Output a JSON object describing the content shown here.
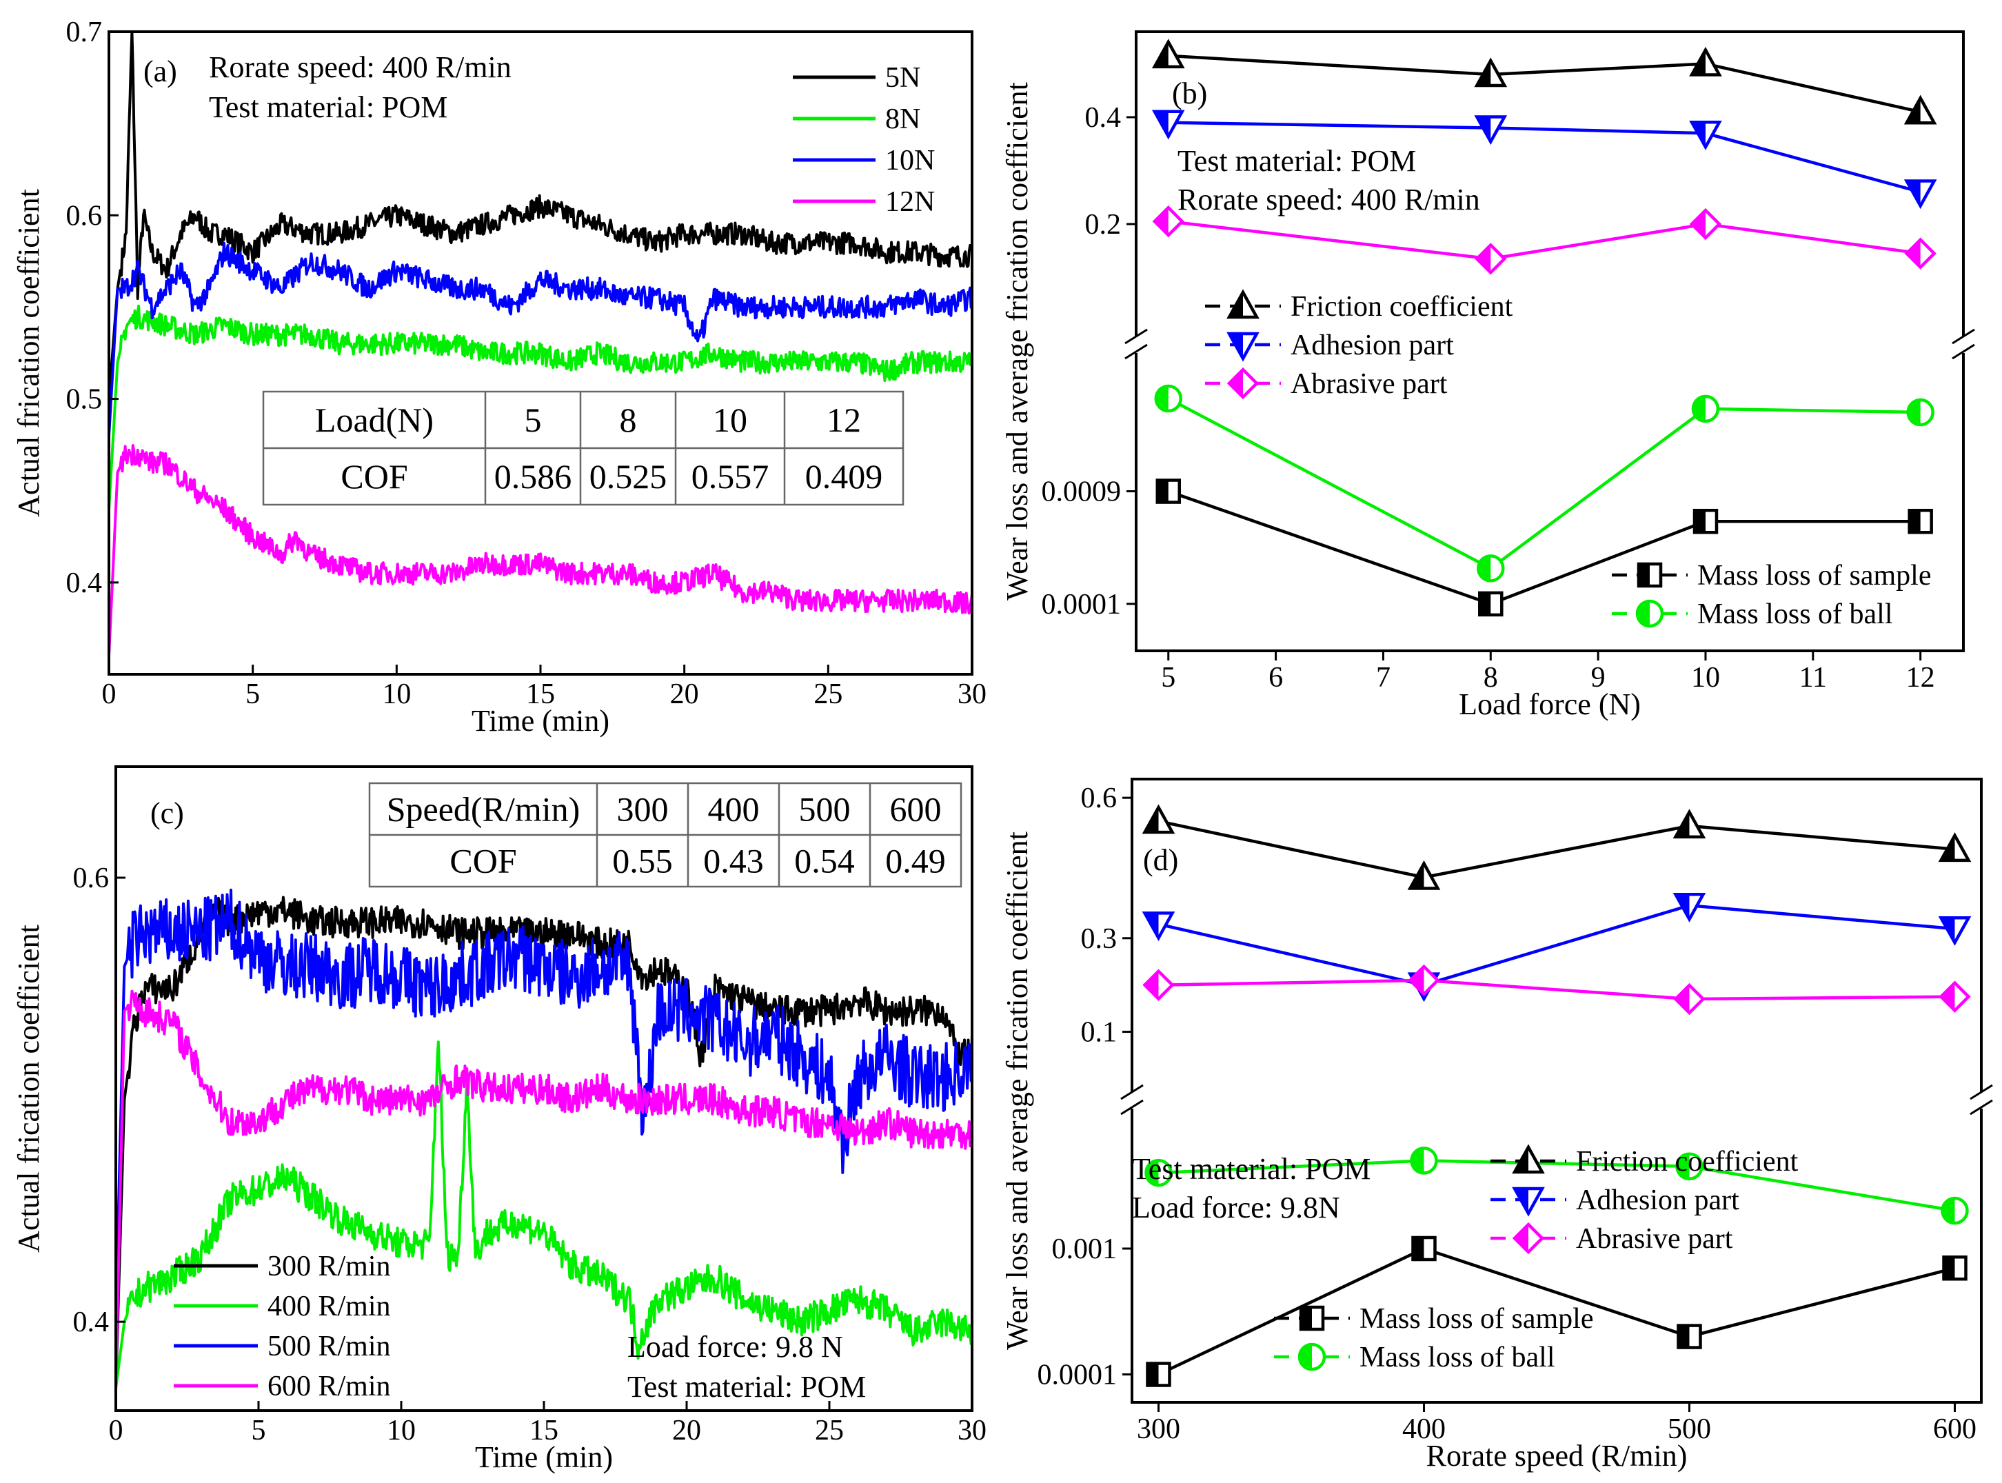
{
  "chart_data": [
    {
      "panel": "(a)",
      "type": "line",
      "xlabel": "Time (min)",
      "ylabel": "Actual frication coefficient",
      "xlim": [
        0,
        30
      ],
      "ylim": [
        0.35,
        0.7
      ],
      "xticks": [
        0,
        5,
        10,
        15,
        20,
        25,
        30
      ],
      "yticks": [
        0.4,
        0.5,
        0.6,
        0.7
      ],
      "annotations": [
        "Rorate speed: 400 R/min",
        "Test material: POM"
      ],
      "legend_position": "top-right",
      "series": [
        {
          "name": "5N",
          "color": "#000000",
          "x": [
            0,
            0.3,
            0.6,
            0.8,
            1.0,
            1.2,
            1.5,
            2,
            2.5,
            3,
            3.5,
            4,
            5,
            6,
            7,
            8,
            9,
            10,
            11,
            12,
            13,
            14,
            15,
            16,
            17,
            18,
            19,
            20,
            21,
            22,
            23,
            24,
            25,
            26,
            27,
            28,
            29,
            30
          ],
          "y": [
            0.5,
            0.56,
            0.59,
            0.7,
            0.56,
            0.6,
            0.58,
            0.57,
            0.59,
            0.6,
            0.59,
            0.59,
            0.58,
            0.595,
            0.59,
            0.59,
            0.595,
            0.6,
            0.595,
            0.59,
            0.595,
            0.6,
            0.605,
            0.6,
            0.595,
            0.59,
            0.585,
            0.59,
            0.59,
            0.59,
            0.585,
            0.585,
            0.585,
            0.585,
            0.58,
            0.58,
            0.578,
            0.578
          ]
        },
        {
          "name": "8N",
          "color": "#00ee00",
          "x": [
            0,
            0.3,
            0.6,
            1,
            2,
            3,
            4,
            5,
            6,
            7,
            8,
            9,
            10,
            11,
            12,
            13,
            14,
            15,
            16,
            17,
            18,
            19,
            20,
            21,
            22,
            23,
            24,
            25,
            26,
            27,
            28,
            29,
            30
          ],
          "y": [
            0.44,
            0.52,
            0.54,
            0.545,
            0.54,
            0.535,
            0.54,
            0.535,
            0.535,
            0.535,
            0.53,
            0.53,
            0.53,
            0.53,
            0.53,
            0.525,
            0.525,
            0.525,
            0.52,
            0.525,
            0.52,
            0.52,
            0.52,
            0.525,
            0.52,
            0.52,
            0.52,
            0.52,
            0.52,
            0.515,
            0.52,
            0.52,
            0.52
          ]
        },
        {
          "name": "10N",
          "color": "#0000ff",
          "x": [
            0,
            0.3,
            0.6,
            1,
            1.5,
            2,
            2.5,
            3,
            3.5,
            4,
            5,
            6,
            7,
            8,
            9,
            10,
            11,
            12,
            13,
            14,
            15,
            16,
            17,
            18,
            19,
            20,
            20.5,
            21,
            22,
            23,
            24,
            25,
            26,
            27,
            28,
            29,
            30
          ],
          "y": [
            0.48,
            0.56,
            0.56,
            0.57,
            0.55,
            0.56,
            0.57,
            0.55,
            0.56,
            0.58,
            0.57,
            0.56,
            0.575,
            0.57,
            0.56,
            0.57,
            0.565,
            0.56,
            0.56,
            0.55,
            0.565,
            0.56,
            0.56,
            0.555,
            0.555,
            0.55,
            0.53,
            0.555,
            0.55,
            0.55,
            0.55,
            0.55,
            0.55,
            0.55,
            0.555,
            0.55,
            0.555
          ]
        },
        {
          "name": "12N",
          "color": "#ff00ff",
          "x": [
            0,
            0.3,
            0.6,
            1,
            1.5,
            2,
            3,
            4,
            5,
            6,
            6.5,
            7,
            8,
            9,
            10,
            11,
            12,
            13,
            14,
            15,
            16,
            17,
            18,
            19,
            20,
            21,
            22,
            23,
            24,
            25,
            26,
            27,
            28,
            29,
            30
          ],
          "y": [
            0.36,
            0.46,
            0.47,
            0.47,
            0.465,
            0.465,
            0.45,
            0.44,
            0.425,
            0.415,
            0.425,
            0.415,
            0.41,
            0.405,
            0.405,
            0.405,
            0.405,
            0.41,
            0.41,
            0.41,
            0.405,
            0.405,
            0.405,
            0.4,
            0.4,
            0.405,
            0.395,
            0.395,
            0.39,
            0.39,
            0.39,
            0.39,
            0.39,
            0.39,
            0.388
          ]
        }
      ],
      "table": {
        "rows": [
          [
            "Load(N)",
            "5",
            "8",
            "10",
            "12"
          ],
          [
            "COF",
            "0.586",
            "0.525",
            "0.557",
            "0.409"
          ]
        ]
      }
    },
    {
      "panel": "(b)",
      "type": "line",
      "xlabel": "Load force (N)",
      "ylabel": "Wear  loss and average frication coefficient",
      "x": [
        5,
        8,
        10,
        12
      ],
      "xlim": [
        4.7,
        12.4
      ],
      "xticks": [
        5,
        6,
        7,
        8,
        9,
        10,
        11,
        12
      ],
      "upper_yticks": [
        "0.2",
        "0.4"
      ],
      "lower_yticks": [
        "0.0001",
        "0.0009"
      ],
      "lower_scale": "log",
      "annotations": [
        "Test material: POM",
        "Rorate speed: 400 R/min"
      ],
      "series": [
        {
          "name": "Friction coefficient",
          "axis": "upper",
          "color": "#000000",
          "marker": "triangle-up",
          "values": [
            0.515,
            0.48,
            0.5,
            0.41
          ]
        },
        {
          "name": "Adhesion part",
          "axis": "upper",
          "color": "#0000ff",
          "marker": "triangle-down",
          "values": [
            0.39,
            0.38,
            0.37,
            0.26
          ]
        },
        {
          "name": "Abrasive part",
          "axis": "upper",
          "color": "#ff00ff",
          "marker": "diamond",
          "values": [
            0.205,
            0.135,
            0.2,
            0.145
          ]
        },
        {
          "name": "Mass loss of sample",
          "axis": "lower",
          "color": "#000000",
          "marker": "square-half",
          "values": [
            0.0009,
            0.0001,
            0.0005,
            0.0005
          ]
        },
        {
          "name": "Mass loss of ball",
          "axis": "lower",
          "color": "#00ee00",
          "marker": "circle-half",
          "values": [
            0.0055,
            0.0002,
            0.0045,
            0.0042
          ]
        }
      ]
    },
    {
      "panel": "(c)",
      "type": "line",
      "xlabel": "Time (min)",
      "ylabel": "Actual frication coefficient",
      "xlim": [
        0,
        30
      ],
      "ylim": [
        0.36,
        0.65
      ],
      "xticks": [
        0,
        5,
        10,
        15,
        20,
        25,
        30
      ],
      "yticks": [
        0.4,
        0.6
      ],
      "annotations": [
        "Load force: 9.8 N",
        "Test material: POM"
      ],
      "legend_position": "bottom-left",
      "series": [
        {
          "name": "300 R/min",
          "color": "#000000",
          "x": [
            0,
            0.3,
            0.6,
            1,
            2,
            3,
            3.5,
            4,
            5,
            6,
            7,
            8,
            9,
            10,
            11,
            12,
            13,
            14,
            15,
            16,
            17,
            18,
            18.5,
            19,
            20,
            20.5,
            21,
            22,
            23,
            24,
            25,
            26,
            27,
            28,
            29,
            29.5,
            30
          ],
          "y": [
            0.37,
            0.5,
            0.53,
            0.55,
            0.55,
            0.575,
            0.585,
            0.58,
            0.585,
            0.585,
            0.58,
            0.58,
            0.58,
            0.58,
            0.58,
            0.575,
            0.575,
            0.575,
            0.575,
            0.575,
            0.57,
            0.57,
            0.555,
            0.56,
            0.55,
            0.52,
            0.55,
            0.545,
            0.54,
            0.54,
            0.54,
            0.545,
            0.54,
            0.54,
            0.54,
            0.52,
            0.52
          ]
        },
        {
          "name": "400 R/min",
          "color": "#00ee00",
          "x": [
            0,
            0.3,
            0.6,
            1,
            2,
            3,
            4,
            5,
            6,
            7,
            8,
            9,
            10,
            11,
            11.3,
            11.6,
            12,
            12.3,
            12.6,
            13,
            14,
            15,
            16,
            17,
            18,
            18.3,
            19,
            20,
            21,
            22,
            23,
            24,
            25,
            26,
            27,
            28,
            29,
            30
          ],
          "y": [
            0.37,
            0.4,
            0.41,
            0.415,
            0.42,
            0.43,
            0.455,
            0.46,
            0.465,
            0.455,
            0.445,
            0.44,
            0.435,
            0.435,
            0.53,
            0.43,
            0.43,
            0.51,
            0.43,
            0.44,
            0.445,
            0.44,
            0.425,
            0.42,
            0.41,
            0.39,
            0.41,
            0.415,
            0.42,
            0.41,
            0.405,
            0.4,
            0.405,
            0.41,
            0.405,
            0.395,
            0.4,
            0.395
          ]
        },
        {
          "name": "500 R/min",
          "color": "#0000ff",
          "x": [
            0,
            0.3,
            0.6,
            1,
            2,
            3,
            4,
            5,
            6,
            7,
            8,
            9,
            10,
            11,
            12,
            13,
            14,
            15,
            16,
            17,
            18,
            18.5,
            19,
            20,
            21,
            22,
            23,
            24,
            25,
            25.5,
            26,
            27,
            28,
            29,
            30
          ],
          "y": [
            0.4,
            0.56,
            0.57,
            0.575,
            0.575,
            0.575,
            0.58,
            0.565,
            0.56,
            0.56,
            0.555,
            0.56,
            0.555,
            0.55,
            0.555,
            0.56,
            0.565,
            0.56,
            0.555,
            0.56,
            0.56,
            0.49,
            0.54,
            0.54,
            0.535,
            0.525,
            0.53,
            0.52,
            0.51,
            0.48,
            0.51,
            0.52,
            0.51,
            0.51,
            0.515
          ]
        },
        {
          "name": "600 R/min",
          "color": "#ff00ff",
          "x": [
            0,
            0.3,
            0.6,
            1,
            2,
            3,
            4,
            5,
            6,
            7,
            8,
            9,
            10,
            11,
            12,
            13,
            14,
            15,
            16,
            17,
            18,
            19,
            20,
            21,
            22,
            23,
            24,
            25,
            26,
            27,
            28,
            29,
            30
          ],
          "y": [
            0.37,
            0.54,
            0.545,
            0.54,
            0.535,
            0.51,
            0.49,
            0.49,
            0.5,
            0.505,
            0.505,
            0.5,
            0.5,
            0.5,
            0.51,
            0.505,
            0.505,
            0.505,
            0.5,
            0.505,
            0.5,
            0.5,
            0.5,
            0.5,
            0.495,
            0.495,
            0.49,
            0.49,
            0.485,
            0.49,
            0.485,
            0.485,
            0.485
          ]
        }
      ],
      "table": {
        "rows": [
          [
            "Speed(R/min)",
            "300",
            "400",
            "500",
            "600"
          ],
          [
            "COF",
            "0.55",
            "0.43",
            "0.54",
            "0.49"
          ]
        ]
      }
    },
    {
      "panel": "(d)",
      "type": "line",
      "xlabel": "Rorate speed (R/min)",
      "ylabel": "Wear  loss and average frication coefficient",
      "x": [
        300,
        400,
        500,
        600
      ],
      "xlim": [
        290,
        610
      ],
      "xticks": [
        300,
        400,
        500,
        600
      ],
      "upper_yticks": [
        "0.1",
        "0.3",
        "0.6"
      ],
      "lower_yticks": [
        "0.0001",
        "0.001"
      ],
      "lower_scale": "log",
      "annotations": [
        "Test material: POM",
        "Load force: 9.8N"
      ],
      "series": [
        {
          "name": "Friction coefficient",
          "axis": "upper",
          "color": "#000000",
          "marker": "triangle-up",
          "values": [
            0.55,
            0.43,
            0.54,
            0.49
          ]
        },
        {
          "name": "Adhesion part",
          "axis": "upper",
          "color": "#0000ff",
          "marker": "triangle-down",
          "values": [
            0.33,
            0.2,
            0.37,
            0.32
          ]
        },
        {
          "name": "Abrasive part",
          "axis": "upper",
          "color": "#ff00ff",
          "marker": "diamond",
          "values": [
            0.2,
            0.21,
            0.17,
            0.175
          ]
        },
        {
          "name": "Mass loss of sample",
          "axis": "lower",
          "color": "#000000",
          "marker": "square-half",
          "values": [
            0.0001,
            0.001,
            0.0002,
            0.0007
          ]
        },
        {
          "name": "Mass loss of ball",
          "axis": "lower",
          "color": "#00ee00",
          "marker": "circle-half",
          "values": [
            0.004,
            0.005,
            0.0045,
            0.002
          ]
        }
      ]
    }
  ]
}
